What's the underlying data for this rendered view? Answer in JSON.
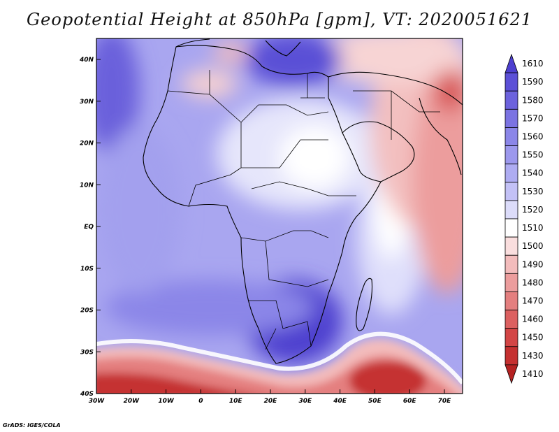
{
  "title": "Geopotential Height at 850hPa [gpm], VT: 2020051621",
  "credit": "GrADS: IGES/COLA",
  "y_ticks": [
    "40N",
    "30N",
    "20N",
    "10N",
    "EQ",
    "10S",
    "20S",
    "30S",
    "40S"
  ],
  "x_ticks": [
    "30W",
    "20W",
    "10W",
    "0",
    "10E",
    "20E",
    "30E",
    "40E",
    "50E",
    "60E",
    "70E"
  ],
  "colorbar": {
    "levels": [
      "1610",
      "1590",
      "1580",
      "1570",
      "1560",
      "1550",
      "1540",
      "1530",
      "1520",
      "1510",
      "1500",
      "1490",
      "1480",
      "1470",
      "1460",
      "1450",
      "1430",
      "1410"
    ],
    "colors": [
      "#4d3fcf",
      "#5c50d7",
      "#6c62dd",
      "#7b73e2",
      "#8b86e8",
      "#9c98ed",
      "#aeacf2",
      "#c3c1f6",
      "#dcdcfa",
      "#ffffff",
      "#fadede",
      "#f3bcbc",
      "#ec9d9d",
      "#e47f7f",
      "#dc6060",
      "#d34545",
      "#c53030",
      "#b52222"
    ]
  }
}
